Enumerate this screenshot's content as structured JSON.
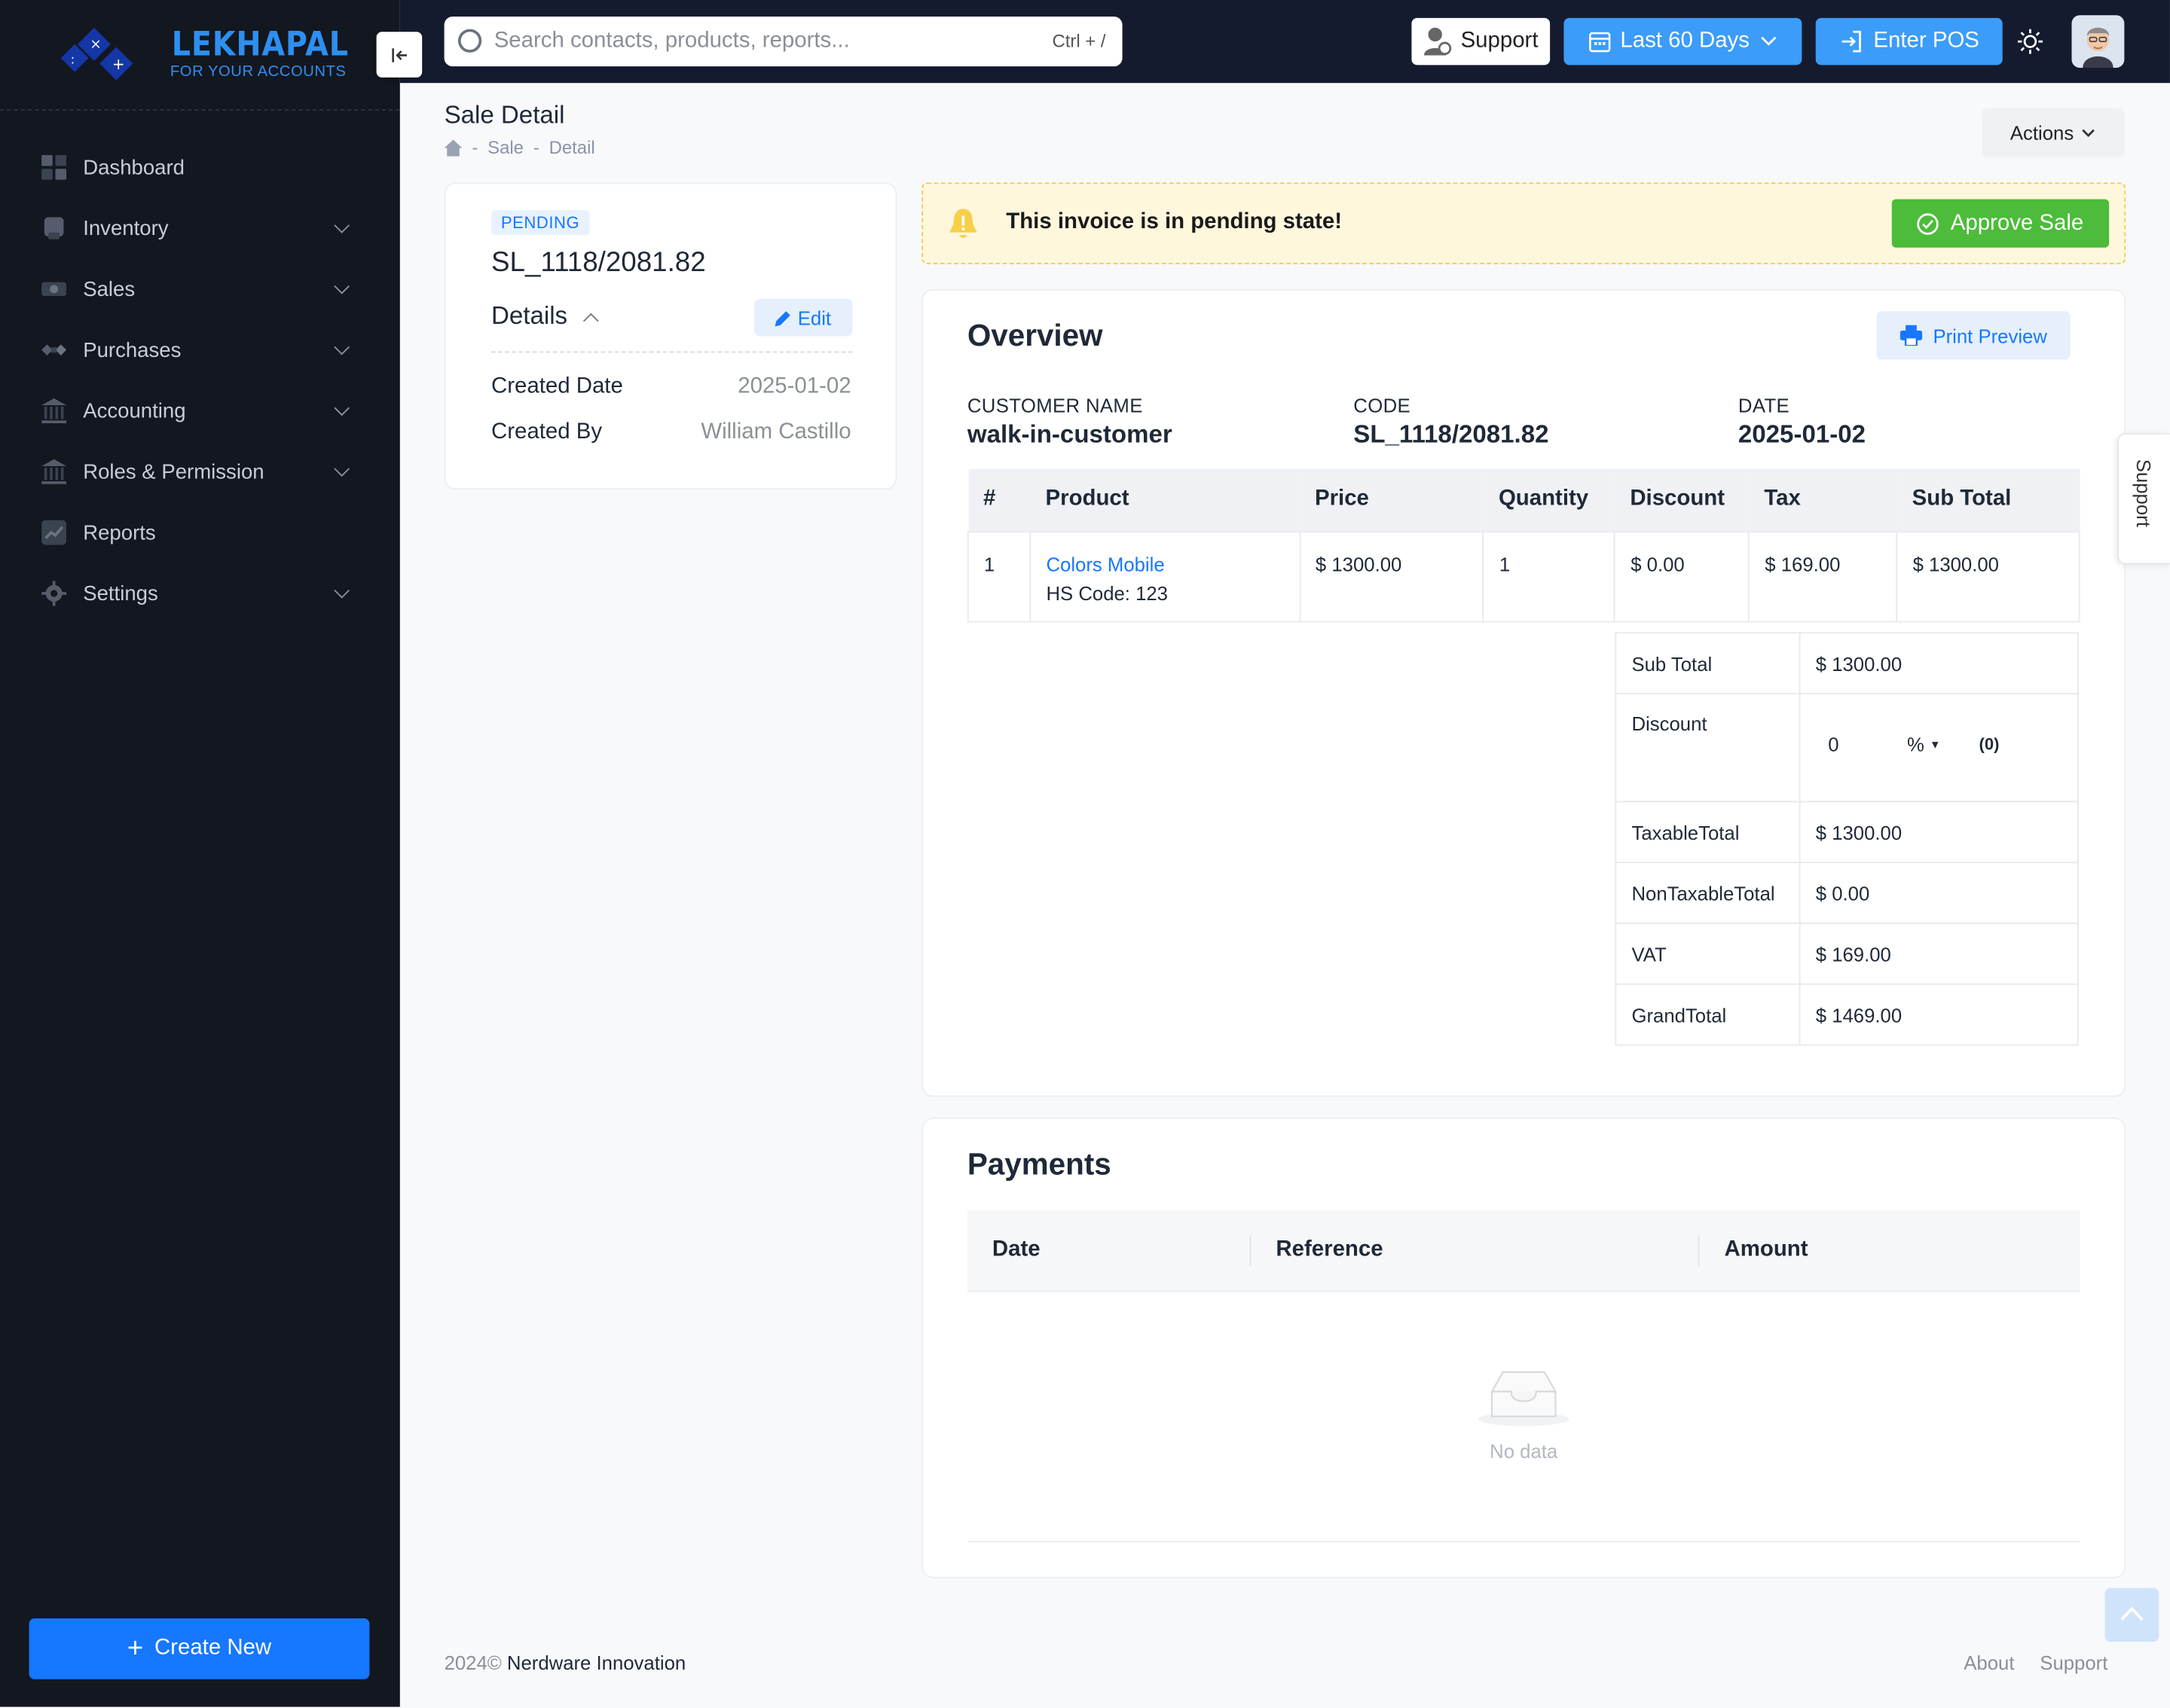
{
  "brand": {
    "name": "LEKHAPAL",
    "tagline": "FOR YOUR ACCOUNTS"
  },
  "sidebar": {
    "items": [
      {
        "label": "Dashboard",
        "icon": "dashboard-icon",
        "has_chevron": false
      },
      {
        "label": "Inventory",
        "icon": "inventory-icon",
        "has_chevron": true
      },
      {
        "label": "Sales",
        "icon": "sales-icon",
        "has_chevron": true
      },
      {
        "label": "Purchases",
        "icon": "purchases-icon",
        "has_chevron": true
      },
      {
        "label": "Accounting",
        "icon": "bank-icon",
        "has_chevron": true
      },
      {
        "label": "Roles & Permission",
        "icon": "bank-icon",
        "has_chevron": true
      },
      {
        "label": "Reports",
        "icon": "reports-icon",
        "has_chevron": false
      },
      {
        "label": "Settings",
        "icon": "gear-icon",
        "has_chevron": true
      }
    ],
    "create_new": "Create New"
  },
  "topbar": {
    "search_placeholder": "Search contacts, products, reports...",
    "search_shortcut": "Ctrl + /",
    "support": "Support",
    "date_range": "Last 60 Days",
    "enter_pos": "Enter POS"
  },
  "page": {
    "title": "Sale Detail",
    "breadcrumb": [
      "Sale",
      "Detail"
    ],
    "actions": "Actions"
  },
  "summary": {
    "status": "PENDING",
    "code": "SL_1118/2081.82",
    "details_label": "Details",
    "edit": "Edit",
    "created_date_label": "Created Date",
    "created_date": "2025-01-02",
    "created_by_label": "Created By",
    "created_by": "William Castillo"
  },
  "alert": {
    "message": "This invoice is in pending state!",
    "approve": "Approve Sale"
  },
  "overview": {
    "title": "Overview",
    "print": "Print Preview",
    "customer_label": "CUSTOMER NAME",
    "customer": "walk-in-customer",
    "code_label": "CODE",
    "code": "SL_1118/2081.82",
    "date_label": "DATE",
    "date": "2025-01-02",
    "columns": [
      "#",
      "Product",
      "Price",
      "Quantity",
      "Discount",
      "Tax",
      "Sub Total"
    ],
    "rows": [
      {
        "num": "1",
        "product": "Colors Mobile",
        "hs_code": "HS Code: 123",
        "price": "$ 1300.00",
        "quantity": "1",
        "discount": "$ 0.00",
        "tax": "$ 169.00",
        "subtotal": "$ 1300.00"
      }
    ],
    "totals": {
      "sub_total_label": "Sub Total",
      "sub_total": "$ 1300.00",
      "discount_label": "Discount",
      "discount_value": "0",
      "discount_type": "%",
      "discount_amount": "(0)",
      "taxable_label": "TaxableTotal",
      "taxable": "$ 1300.00",
      "nontaxable_label": "NonTaxableTotal",
      "nontaxable": "$ 0.00",
      "vat_label": "VAT",
      "vat": "$ 169.00",
      "grand_label": "GrandTotal",
      "grand": "$ 1469.00"
    }
  },
  "payments": {
    "title": "Payments",
    "columns": [
      "Date",
      "Reference",
      "Amount"
    ],
    "empty": "No data"
  },
  "support_tab": "Support",
  "footer": {
    "year": "2024©",
    "company": "Nerdware Innovation",
    "about": "About",
    "support": "Support"
  },
  "colors": {
    "primary": "#1677ff",
    "success": "#4cbc3a",
    "sidebar_bg": "#13171f",
    "topbar_bg": "#151b2f",
    "warning_bg": "#fef7dc"
  }
}
